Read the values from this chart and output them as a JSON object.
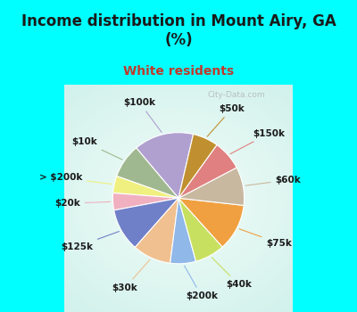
{
  "title": "Income distribution in Mount Airy, GA\n(%)",
  "subtitle": "White residents",
  "title_color": "#1a1a1a",
  "subtitle_color": "#c0392b",
  "background_top": "#00ffff",
  "labels": [
    "$100k",
    "$10k",
    "> $200k",
    "$20k",
    "$125k",
    "$30k",
    "$200k",
    "$40k",
    "$75k",
    "$60k",
    "$150k",
    "$50k"
  ],
  "sizes": [
    14,
    8,
    4,
    4,
    10,
    9,
    6,
    7,
    11,
    9,
    7,
    6
  ],
  "colors": [
    "#b0a0d0",
    "#a0b890",
    "#f0f080",
    "#f0b0c0",
    "#7080c8",
    "#f0c090",
    "#90b8e8",
    "#c8e060",
    "#f0a040",
    "#c8b8a0",
    "#e08080",
    "#c09030"
  ],
  "startangle": 77,
  "figsize": [
    4.0,
    3.5
  ],
  "dpi": 100
}
